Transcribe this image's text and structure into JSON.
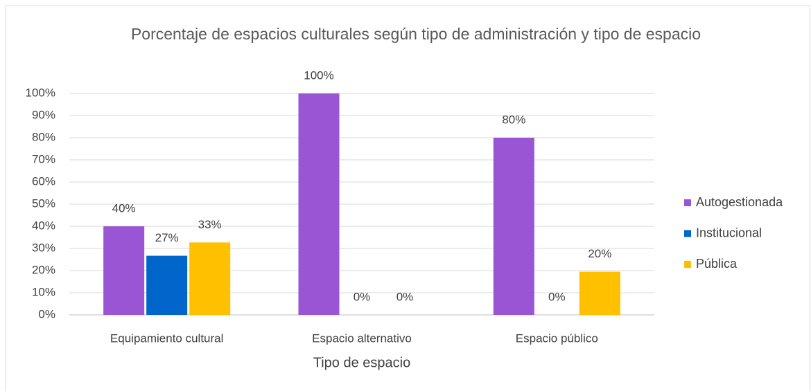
{
  "chart_data": {
    "type": "bar",
    "title": "Porcentaje de espacios culturales según tipo de administración y tipo de espacio",
    "x_label": "Tipo de espacio",
    "categories": [
      "Equipamiento cultural",
      "Espacio alternativo",
      "Espacio público"
    ],
    "series": [
      {
        "name": "Autogestionada",
        "color": "#9955d4",
        "values": [
          40,
          100,
          80
        ],
        "value_labels": [
          "40%",
          "100%",
          "80%"
        ]
      },
      {
        "name": "Institucional",
        "color": "#0066cc",
        "values": [
          26.7,
          0,
          0
        ],
        "value_labels": [
          "27%",
          "0%",
          "0%"
        ]
      },
      {
        "name": "Pública",
        "color": "#ffc000",
        "values": [
          32.7,
          0,
          19.5
        ],
        "value_labels": [
          "33%",
          "0%",
          "20%"
        ]
      }
    ],
    "ylim": [
      0,
      100
    ],
    "yticks": [
      {
        "value": 0,
        "label": "0%"
      },
      {
        "value": 10,
        "label": "10%"
      },
      {
        "value": 20,
        "label": "20%"
      },
      {
        "value": 30,
        "label": "30%"
      },
      {
        "value": 40,
        "label": "40%"
      },
      {
        "value": 50,
        "label": "50%"
      },
      {
        "value": 60,
        "label": "60%"
      },
      {
        "value": 70,
        "label": "70%"
      },
      {
        "value": 80,
        "label": "80%"
      },
      {
        "value": 90,
        "label": "90%"
      },
      {
        "value": 100,
        "label": "100%"
      }
    ],
    "grid": true,
    "legend": "right"
  }
}
